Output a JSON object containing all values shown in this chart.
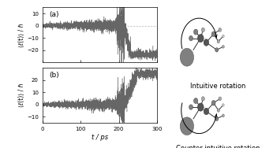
{
  "fig_width": 3.46,
  "fig_height": 1.88,
  "dpi": 100,
  "panel_a": {
    "label": "(a)",
    "ylabel": "⟨ℓ(t)⟩ / ℏ",
    "ylim": [
      -30,
      15
    ],
    "yticks": [
      -20,
      -10,
      0,
      10
    ]
  },
  "panel_b": {
    "label": "(b)",
    "ylabel": "⟨ℓ(t)⟩ / ℏ",
    "ylim": [
      -15,
      30
    ],
    "yticks": [
      -10,
      0,
      10,
      20
    ]
  },
  "xlabel": "t / ps",
  "xlim": [
    0,
    300
  ],
  "xticks": [
    0,
    100,
    200,
    300
  ],
  "line_color": "#555555",
  "dashed_color": "#aaaaaa",
  "bg_color": "#ffffff",
  "right_panel": {
    "top_label": "Intuitive rotation",
    "bottom_label": "Counter-intuitive rotation"
  }
}
